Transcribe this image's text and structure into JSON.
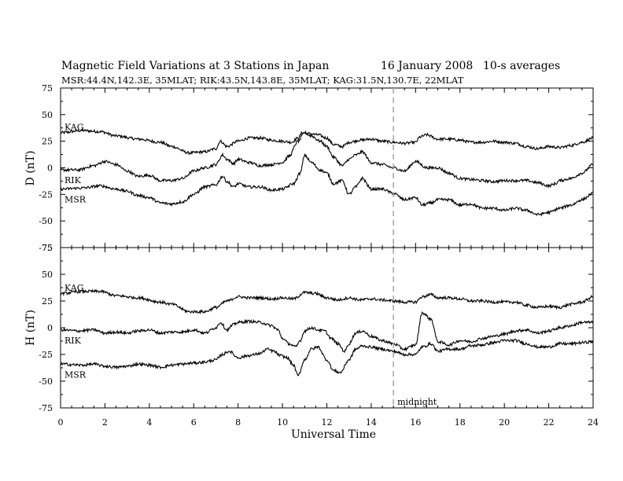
{
  "header": {
    "title": "Magnetic Field Variations at 3 Stations in Japan",
    "date": "16 January 2008",
    "averaging": "10-s averages",
    "stations_line": "MSR:44.4N,142.3E, 35MLAT;  RIK:43.5N,143.8E, 35MLAT;  KAG:31.5N,130.7E, 22MLAT"
  },
  "chart_data": {
    "type": "line",
    "xlabel": "Universal Time",
    "xlim": [
      0,
      24
    ],
    "x_ticks": [
      0,
      2,
      4,
      6,
      8,
      10,
      12,
      14,
      16,
      18,
      20,
      22,
      24
    ],
    "x_tick_labels": [
      "0",
      "2",
      "4",
      "6",
      "8",
      "10",
      "12",
      "14",
      "16",
      "18",
      "20",
      "22",
      "24"
    ],
    "midnight_marker": {
      "x": 15,
      "label": "midnight",
      "style": "dashed",
      "color": "#aaaaaa"
    },
    "panels": [
      {
        "ylabel": "D (nT)",
        "ylim": [
          -75,
          75
        ],
        "y_ticks": [
          75,
          50,
          25,
          0,
          -25,
          -50,
          -75
        ],
        "y_tick_labels": [
          "75",
          "50",
          "25",
          "0",
          "-25",
          "-50",
          "-75"
        ],
        "series": [
          {
            "name": "KAG",
            "x": [
              0,
              1,
              1.8,
              2.5,
              3.5,
              4.5,
              5,
              5.8,
              6.5,
              7,
              7.2,
              7.5,
              8,
              8.5,
              9,
              9.5,
              10,
              10.4,
              10.7,
              10.9,
              11.2,
              11.6,
              12,
              12.3,
              12.7,
              13,
              13.5,
              14,
              14.5,
              15,
              15.5,
              16,
              16.2,
              16.5,
              17,
              17.5,
              18,
              18.5,
              19,
              19.5,
              20,
              20.5,
              21,
              21.5,
              22,
              22.5,
              23,
              23.5,
              24
            ],
            "y": [
              33,
              35,
              34,
              30,
              27,
              24,
              20,
              14,
              15,
              18,
              25,
              20,
              25,
              28,
              28,
              26,
              25,
              24,
              28,
              33,
              32,
              31,
              28,
              22,
              20,
              24,
              26,
              27,
              25,
              24,
              23,
              24,
              29,
              31,
              27,
              27,
              26,
              24,
              24,
              25,
              24,
              23,
              20,
              18,
              20,
              19,
              21,
              24,
              28
            ]
          },
          {
            "name": "RIK",
            "x": [
              0,
              0.8,
              1.5,
              2,
              2.5,
              3,
              3.5,
              4,
              4.5,
              5,
              5.5,
              6,
              6.5,
              7,
              7.3,
              7.5,
              7.8,
              8,
              8.5,
              9,
              9.5,
              10,
              10.3,
              10.7,
              11,
              11.3,
              11.7,
              12,
              12.3,
              12.7,
              13,
              13.3,
              13.6,
              14,
              14.5,
              15,
              15.5,
              16,
              16.5,
              17,
              17.5,
              18,
              18.5,
              19,
              19.5,
              20,
              20.5,
              21,
              21.5,
              22,
              22.3,
              22.5,
              23,
              23.5,
              24
            ],
            "y": [
              -2,
              -2,
              2,
              6,
              3,
              -3,
              -8,
              -7,
              -12,
              -12,
              -10,
              -3,
              0,
              3,
              12,
              8,
              4,
              8,
              5,
              2,
              3,
              5,
              11,
              25,
              33,
              30,
              25,
              20,
              10,
              2,
              8,
              12,
              15,
              5,
              3,
              0,
              -3,
              6,
              0,
              0,
              -5,
              -10,
              -11,
              -12,
              -13,
              -12,
              -12,
              -12,
              -14,
              -17,
              -15,
              -12,
              -10,
              -5,
              3
            ]
          },
          {
            "name": "MSR",
            "x": [
              0,
              1,
              1.8,
              2.5,
              3,
              3.5,
              4,
              4.5,
              5,
              5.5,
              6,
              6.5,
              7,
              7.3,
              7.5,
              7.8,
              8,
              8.5,
              9,
              9.5,
              10,
              10.5,
              10.8,
              11,
              11.3,
              11.7,
              12,
              12.3,
              12.7,
              13,
              13.3,
              13.6,
              14,
              14.5,
              15,
              15.5,
              16,
              16.3,
              16.7,
              17,
              17.5,
              18,
              18.5,
              19,
              19.5,
              20,
              20.5,
              21,
              21.5,
              22,
              22.5,
              23,
              23.5,
              24
            ],
            "y": [
              -20,
              -19,
              -17,
              -20,
              -22,
              -26,
              -28,
              -33,
              -34,
              -32,
              -25,
              -18,
              -16,
              -8,
              -13,
              -18,
              -15,
              -18,
              -18,
              -21,
              -20,
              -15,
              -5,
              12,
              5,
              -2,
              -5,
              -15,
              -12,
              -25,
              -18,
              -10,
              -20,
              -20,
              -24,
              -30,
              -28,
              -35,
              -33,
              -30,
              -30,
              -35,
              -34,
              -38,
              -38,
              -40,
              -38,
              -40,
              -44,
              -42,
              -38,
              -35,
              -30,
              -24
            ]
          }
        ]
      },
      {
        "ylabel": "H (nT)",
        "ylim": [
          -75,
          75
        ],
        "y_ticks": [
          75,
          50,
          25,
          0,
          -25,
          -50,
          -75
        ],
        "y_tick_labels": [
          "75",
          "50",
          "25",
          "0",
          "-25",
          "-50",
          "-75"
        ],
        "series": [
          {
            "name": "KAG",
            "x": [
              0,
              1,
              1.8,
              2.5,
              3.5,
              4.5,
              5,
              5.8,
              6.5,
              7,
              7.5,
              8,
              8.5,
              9,
              9.5,
              10,
              10.5,
              11,
              11.5,
              12,
              12.5,
              13,
              13.5,
              14,
              14.5,
              15,
              15.5,
              16,
              16.3,
              16.7,
              17,
              17.5,
              18,
              18.5,
              19,
              19.5,
              20,
              20.5,
              21,
              21.5,
              22,
              22.5,
              23,
              23.5,
              24
            ],
            "y": [
              32,
              34,
              34,
              30,
              28,
              24,
              22,
              15,
              15,
              19,
              25,
              29,
              28,
              28,
              27,
              28,
              27,
              33,
              32,
              28,
              26,
              28,
              26,
              27,
              26,
              25,
              24,
              24,
              29,
              31,
              28,
              28,
              27,
              25,
              25,
              24,
              24,
              24,
              21,
              19,
              20,
              19,
              22,
              24,
              29
            ]
          },
          {
            "name": "RIK",
            "x": [
              0,
              0.8,
              1.5,
              2,
              2.5,
              3,
              3.5,
              4,
              4.5,
              5,
              5.5,
              6,
              6.5,
              7,
              7.2,
              7.5,
              7.8,
              8,
              8.5,
              9,
              9.5,
              9.8,
              10,
              10.3,
              10.6,
              10.8,
              11,
              11.3,
              11.6,
              11.9,
              12.2,
              12.5,
              12.8,
              13,
              13.3,
              13.6,
              14,
              14.5,
              15,
              15.5,
              16,
              16.3,
              16.7,
              17,
              17.5,
              18,
              18.5,
              19,
              19.5,
              20,
              20.5,
              21,
              21.5,
              22,
              22.5,
              23,
              23.5,
              24
            ],
            "y": [
              -2,
              -3,
              -2,
              -5,
              -4,
              -5,
              -3,
              -2,
              -5,
              -4,
              -4,
              -2,
              -5,
              0,
              5,
              -2,
              3,
              5,
              6,
              5,
              2,
              -2,
              -10,
              -15,
              -18,
              -12,
              -3,
              0,
              -2,
              -3,
              -10,
              -15,
              -22,
              -15,
              -5,
              -3,
              -8,
              -12,
              -15,
              -20,
              -16,
              14,
              8,
              -13,
              -16,
              -12,
              -13,
              -10,
              -8,
              -6,
              -3,
              -2,
              -5,
              -3,
              0,
              2,
              5,
              5
            ]
          },
          {
            "name": "MSR",
            "x": [
              0,
              1,
              1.5,
              2,
              2.5,
              3,
              3.5,
              4,
              4.5,
              5,
              5.5,
              6,
              6.5,
              7,
              7.3,
              7.6,
              8,
              8.5,
              9,
              9.3,
              9.6,
              9.9,
              10.2,
              10.5,
              10.7,
              11,
              11.3,
              11.6,
              12,
              12.3,
              12.6,
              13,
              13.3,
              13.6,
              14,
              14.5,
              15,
              15.5,
              16,
              16.3,
              16.7,
              17,
              17.5,
              18,
              18.5,
              19,
              19.5,
              20,
              20.5,
              21,
              21.5,
              22,
              22.5,
              23,
              23.5,
              24
            ],
            "y": [
              -34,
              -35,
              -34,
              -36,
              -37,
              -36,
              -34,
              -35,
              -37,
              -35,
              -34,
              -33,
              -32,
              -30,
              -25,
              -22,
              -28,
              -26,
              -24,
              -20,
              -22,
              -26,
              -28,
              -35,
              -45,
              -30,
              -20,
              -18,
              -30,
              -40,
              -42,
              -30,
              -20,
              -17,
              -18,
              -20,
              -22,
              -25,
              -25,
              -18,
              -15,
              -22,
              -20,
              -20,
              -17,
              -16,
              -14,
              -12,
              -12,
              -15,
              -18,
              -18,
              -15,
              -15,
              -14,
              -13
            ]
          }
        ]
      }
    ]
  }
}
